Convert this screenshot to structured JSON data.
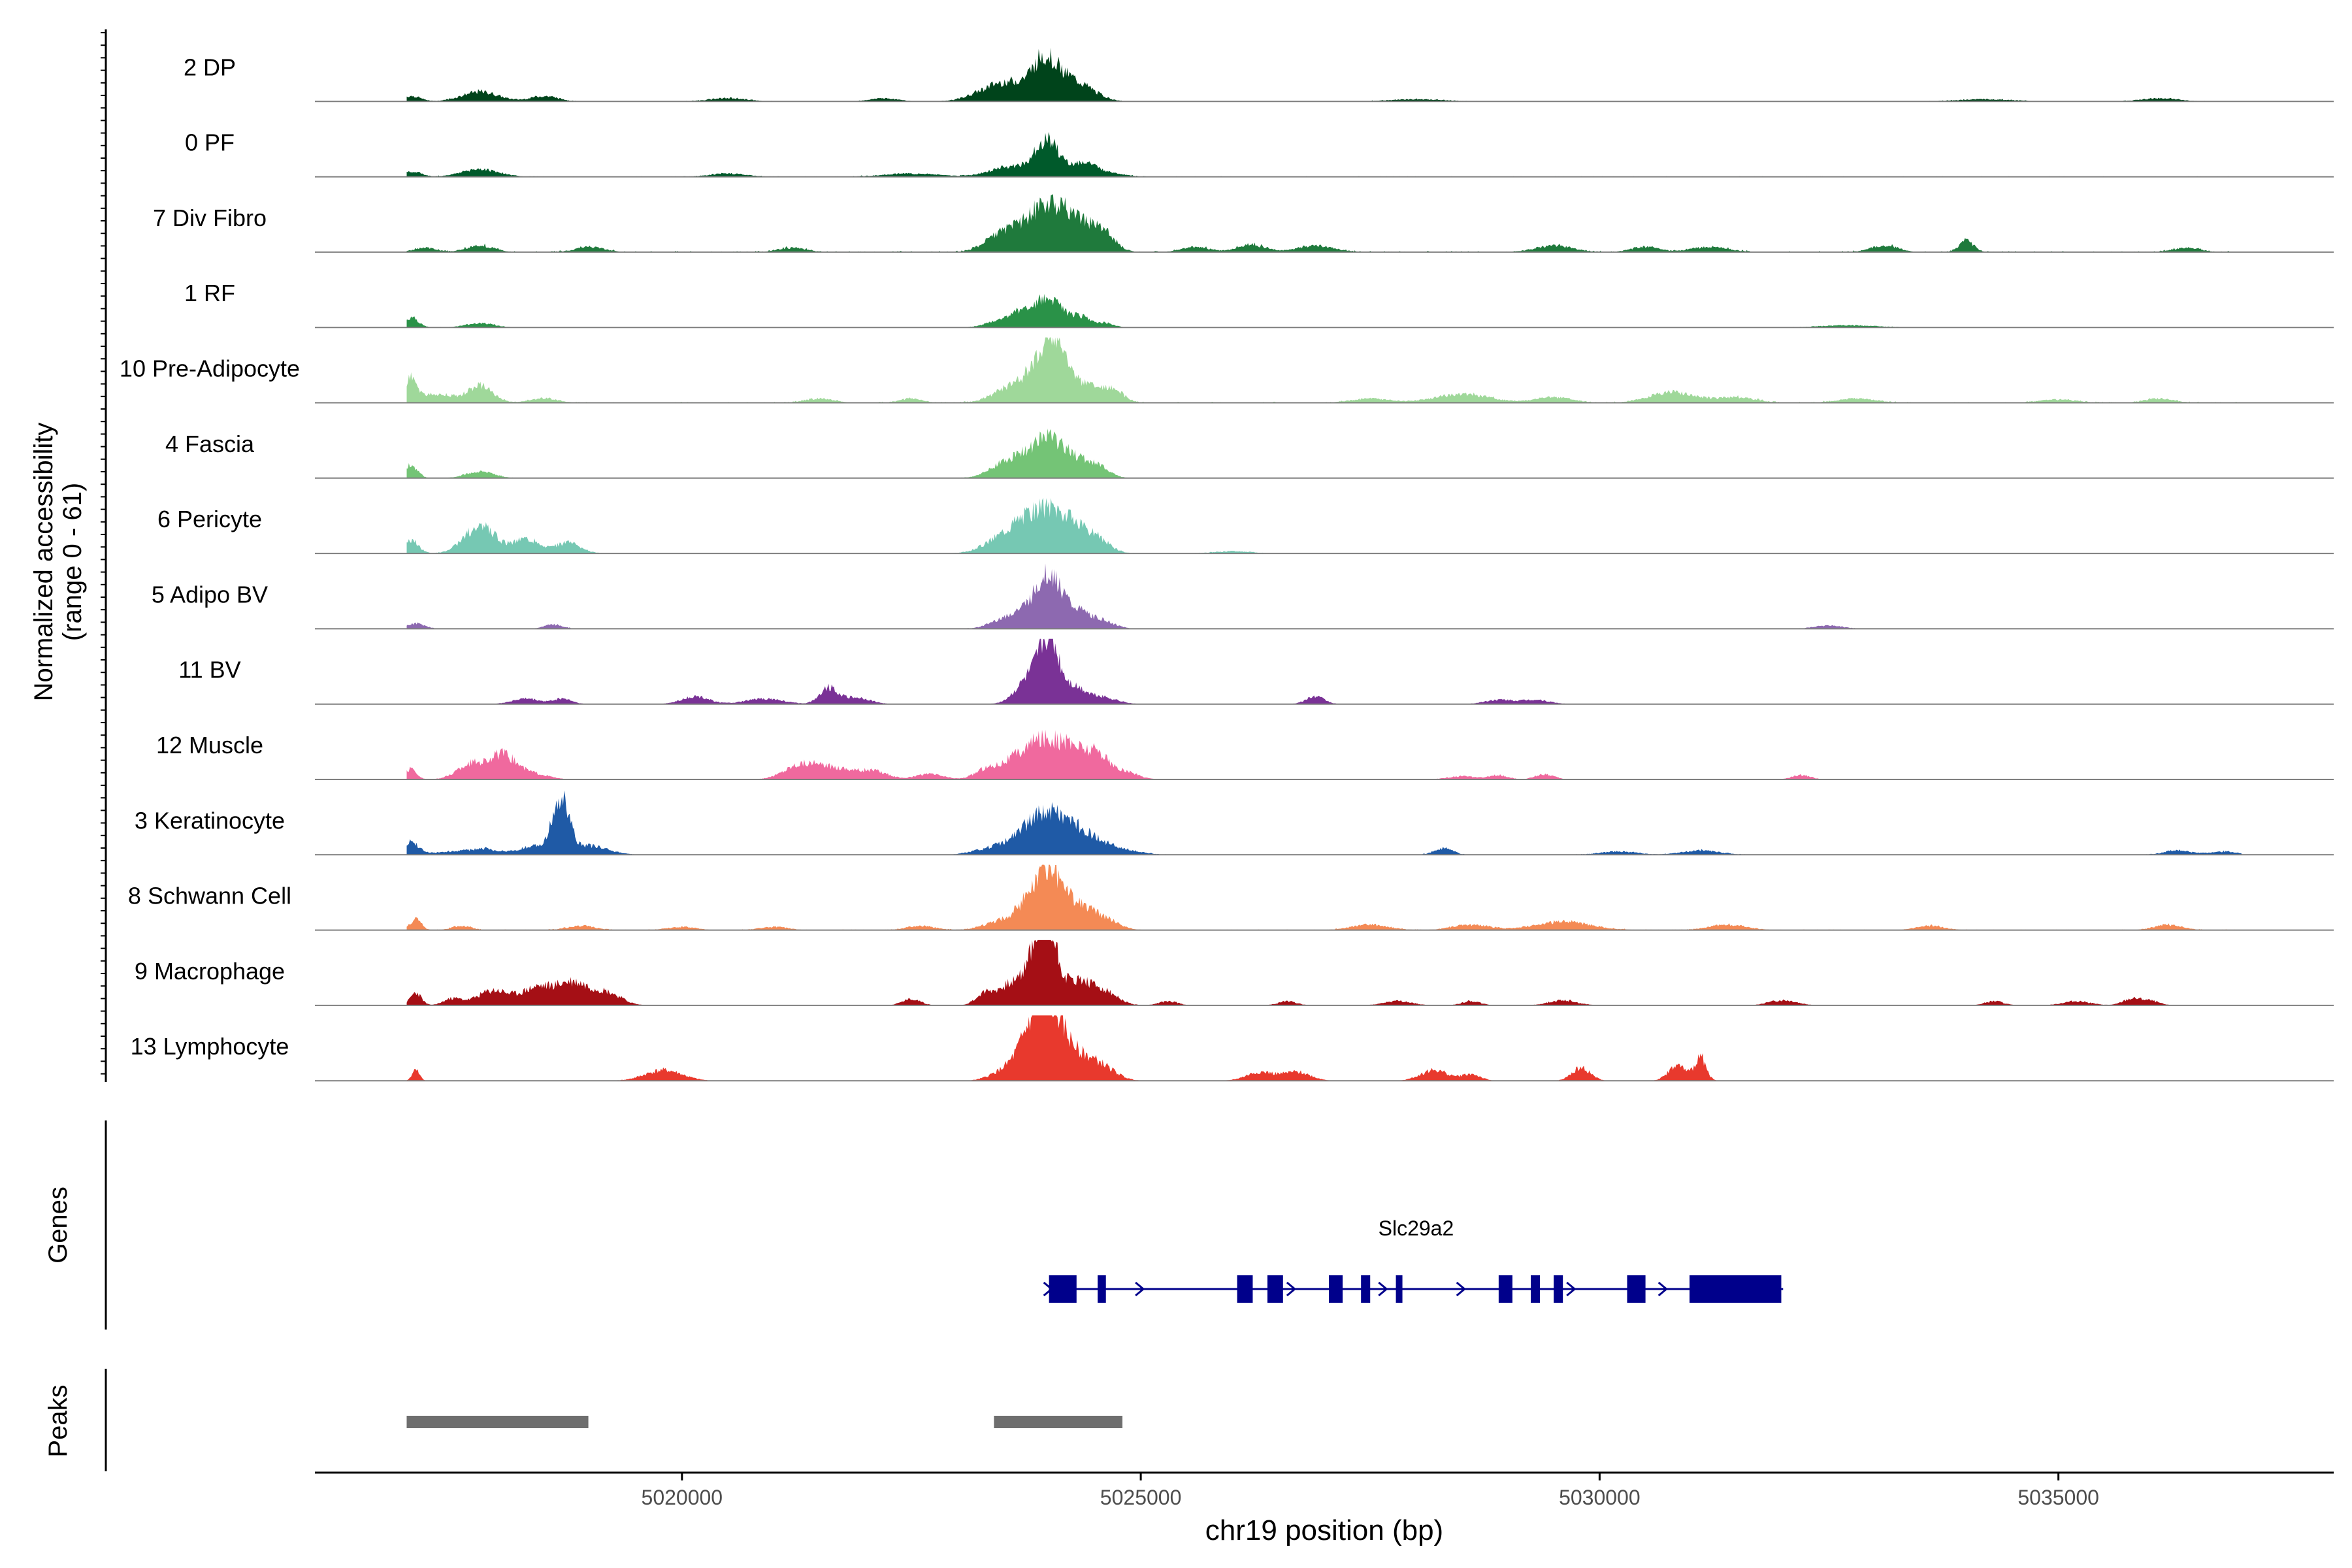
{
  "chart_data": {
    "type": "area",
    "title": "",
    "xlabel": "chr19 position (bp)",
    "ylabel_line1": "Normalized accessibility",
    "ylabel_line2": "(range 0 - 61)",
    "yrange": [
      0,
      61
    ],
    "xlim": [
      5016000,
      5038000
    ],
    "xticks": [
      5020000,
      5025000,
      5030000,
      5035000
    ],
    "xtick_labels": [
      "5020000",
      "5025000",
      "5030000",
      "5035000"
    ],
    "track_labels": {
      "genes": "Genes",
      "peaks": "Peaks"
    },
    "tracks": [
      {
        "name": "2 DP",
        "color": "#00441b",
        "peaks": [
          [
            5017050,
            5,
            100
          ],
          [
            5017800,
            9,
            200
          ],
          [
            5018500,
            5,
            150
          ],
          [
            5020500,
            3,
            200
          ],
          [
            5022200,
            3,
            150
          ],
          [
            5023300,
            6,
            200
          ],
          [
            5023600,
            16,
            220
          ],
          [
            5023950,
            34,
            130
          ],
          [
            5024200,
            18,
            160
          ],
          [
            5024450,
            7,
            150
          ],
          [
            5028000,
            2,
            300
          ],
          [
            5034200,
            2,
            300
          ],
          [
            5036100,
            3,
            200
          ]
        ],
        "noise": 0.06,
        "range": [
          5017000,
          5037000
        ]
      },
      {
        "name": "0 PF",
        "color": "#005a2b",
        "peaks": [
          [
            5017050,
            5,
            100
          ],
          [
            5017800,
            7,
            200
          ],
          [
            5020500,
            3,
            200
          ],
          [
            5022500,
            3,
            300
          ],
          [
            5023550,
            9,
            200
          ],
          [
            5023980,
            33,
            140
          ],
          [
            5024380,
            12,
            120
          ],
          [
            5024650,
            4,
            150
          ]
        ],
        "noise": 0.07,
        "range": [
          5017000,
          5037000
        ]
      },
      {
        "name": "7 Div Fibro",
        "color": "#1f7a3c",
        "peaks": [
          [
            5017200,
            4,
            120
          ],
          [
            5017800,
            6,
            150
          ],
          [
            5019000,
            5,
            150
          ],
          [
            5021200,
            4,
            150
          ],
          [
            5023400,
            8,
            150
          ],
          [
            5023650,
            16,
            200
          ],
          [
            5024000,
            38,
            200
          ],
          [
            5024350,
            22,
            200
          ],
          [
            5024600,
            12,
            120
          ],
          [
            5025600,
            5,
            150
          ],
          [
            5026200,
            7,
            150
          ],
          [
            5026900,
            6,
            200
          ],
          [
            5029500,
            6,
            200
          ],
          [
            5030500,
            5,
            150
          ],
          [
            5031200,
            5,
            200
          ],
          [
            5033100,
            6,
            150
          ],
          [
            5034000,
            10,
            80
          ],
          [
            5036400,
            4,
            150
          ]
        ],
        "noise": 0.15,
        "range": [
          5017000,
          5037000
        ]
      },
      {
        "name": "1 RF",
        "color": "#2a9248",
        "peaks": [
          [
            5017050,
            9,
            80
          ],
          [
            5017800,
            4,
            150
          ],
          [
            5023450,
            5,
            150
          ],
          [
            5023700,
            12,
            140
          ],
          [
            5024000,
            26,
            150
          ],
          [
            5024350,
            9,
            100
          ],
          [
            5024600,
            4,
            100
          ],
          [
            5032700,
            2,
            300
          ]
        ],
        "noise": 0.05,
        "range": [
          5017000,
          5037000
        ]
      },
      {
        "name": "10 Pre-Adipocyte",
        "color": "#9fd89a",
        "peaks": [
          [
            5017050,
            22,
            70
          ],
          [
            5017350,
            8,
            150
          ],
          [
            5017800,
            16,
            140
          ],
          [
            5018500,
            4,
            150
          ],
          [
            5021500,
            4,
            150
          ],
          [
            5022500,
            4,
            120
          ],
          [
            5023550,
            12,
            180
          ],
          [
            5023850,
            24,
            150
          ],
          [
            5024050,
            52,
            120
          ],
          [
            5024350,
            18,
            180
          ],
          [
            5024700,
            10,
            120
          ],
          [
            5027500,
            4,
            200
          ],
          [
            5028500,
            8,
            300
          ],
          [
            5029500,
            5,
            200
          ],
          [
            5030800,
            10,
            250
          ],
          [
            5031500,
            5,
            200
          ],
          [
            5032800,
            4,
            200
          ],
          [
            5035000,
            3,
            200
          ],
          [
            5036100,
            4,
            150
          ]
        ],
        "noise": 0.12,
        "range": [
          5017000,
          5037000
        ]
      },
      {
        "name": "4 Fascia",
        "color": "#74c476",
        "peaks": [
          [
            5017050,
            12,
            70
          ],
          [
            5017800,
            6,
            150
          ],
          [
            5023450,
            8,
            150
          ],
          [
            5023700,
            18,
            160
          ],
          [
            5024000,
            34,
            150
          ],
          [
            5024300,
            16,
            150
          ],
          [
            5024550,
            8,
            120
          ]
        ],
        "noise": 0.05,
        "range": [
          5017000,
          5037000
        ]
      },
      {
        "name": "6 Pericyte",
        "color": "#76c8b3",
        "peaks": [
          [
            5017050,
            12,
            80
          ],
          [
            5017800,
            26,
            170
          ],
          [
            5018300,
            14,
            130
          ],
          [
            5018750,
            10,
            140
          ],
          [
            5023450,
            12,
            180
          ],
          [
            5023700,
            20,
            150
          ],
          [
            5024000,
            38,
            180
          ],
          [
            5024300,
            18,
            160
          ],
          [
            5024550,
            10,
            130
          ],
          [
            5026000,
            2,
            200
          ]
        ],
        "noise": 0.05,
        "range": [
          5017000,
          5037000
        ]
      },
      {
        "name": "5 Adipo BV",
        "color": "#8d69b0",
        "peaks": [
          [
            5017100,
            5,
            100
          ],
          [
            5018600,
            4,
            100
          ],
          [
            5023500,
            8,
            150
          ],
          [
            5023750,
            14,
            140
          ],
          [
            5024000,
            48,
            130
          ],
          [
            5024300,
            16,
            150
          ],
          [
            5024600,
            6,
            130
          ],
          [
            5032500,
            3,
            150
          ]
        ],
        "noise": 0.04,
        "range": [
          5017000,
          5037000
        ]
      },
      {
        "name": "11 BV",
        "color": "#7a3296",
        "peaks": [
          [
            5018300,
            5,
            150
          ],
          [
            5018700,
            5,
            100
          ],
          [
            5020150,
            7,
            150
          ],
          [
            5020900,
            5,
            200
          ],
          [
            5021600,
            15,
            100
          ],
          [
            5021900,
            6,
            150
          ],
          [
            5023800,
            24,
            150
          ],
          [
            5024000,
            50,
            100
          ],
          [
            5024250,
            16,
            150
          ],
          [
            5024600,
            6,
            150
          ],
          [
            5026900,
            7,
            100
          ],
          [
            5028900,
            4,
            150
          ],
          [
            5029300,
            4,
            150
          ]
        ],
        "noise": 0.0,
        "range": [
          5017000,
          5037000
        ]
      },
      {
        "name": "12 Muscle",
        "color": "#f0699e",
        "peaks": [
          [
            5017050,
            10,
            60
          ],
          [
            5017700,
            14,
            150
          ],
          [
            5018050,
            22,
            150
          ],
          [
            5018400,
            5,
            150
          ],
          [
            5021300,
            14,
            180
          ],
          [
            5021700,
            10,
            200
          ],
          [
            5022100,
            7,
            150
          ],
          [
            5022700,
            5,
            150
          ],
          [
            5023300,
            8,
            120
          ],
          [
            5023600,
            16,
            160
          ],
          [
            5023950,
            36,
            180
          ],
          [
            5024300,
            26,
            150
          ],
          [
            5024550,
            18,
            100
          ],
          [
            5024800,
            8,
            150
          ],
          [
            5028500,
            3,
            150
          ],
          [
            5028900,
            4,
            100
          ],
          [
            5029400,
            5,
            100
          ],
          [
            5032200,
            4,
            100
          ]
        ],
        "noise": 0.0,
        "range": [
          5017000,
          5037000
        ]
      },
      {
        "name": "3 Keratinocyte",
        "color": "#1f5aa6",
        "peaks": [
          [
            5017050,
            12,
            80
          ],
          [
            5017500,
            3,
            200
          ],
          [
            5017850,
            5,
            150
          ],
          [
            5018400,
            8,
            180
          ],
          [
            5018680,
            50,
            90
          ],
          [
            5019000,
            8,
            200
          ],
          [
            5023400,
            6,
            200
          ],
          [
            5023800,
            18,
            200
          ],
          [
            5024050,
            28,
            200
          ],
          [
            5024400,
            16,
            200
          ],
          [
            5024800,
            4,
            200
          ],
          [
            5028300,
            6,
            100
          ],
          [
            5030200,
            3,
            200
          ],
          [
            5031100,
            4,
            200
          ],
          [
            5036300,
            4,
            150
          ],
          [
            5036800,
            3,
            150
          ]
        ],
        "noise": 0.06,
        "range": [
          5017000,
          5037000
        ]
      },
      {
        "name": "8 Schwann Cell",
        "color": "#f48a55",
        "peaks": [
          [
            5017100,
            10,
            60
          ],
          [
            5017600,
            4,
            100
          ],
          [
            5018900,
            4,
            150
          ],
          [
            5020000,
            3,
            150
          ],
          [
            5021000,
            3,
            150
          ],
          [
            5022600,
            4,
            150
          ],
          [
            5023500,
            8,
            200
          ],
          [
            5023800,
            22,
            150
          ],
          [
            5024000,
            48,
            130
          ],
          [
            5024300,
            24,
            150
          ],
          [
            5024600,
            10,
            150
          ],
          [
            5027500,
            5,
            200
          ],
          [
            5028600,
            5,
            200
          ],
          [
            5029600,
            8,
            300
          ],
          [
            5031400,
            5,
            200
          ],
          [
            5033600,
            4,
            150
          ],
          [
            5036200,
            5,
            150
          ]
        ],
        "noise": 0.08,
        "range": [
          5017000,
          5037000
        ]
      },
      {
        "name": "9 Macrophage",
        "color": "#a50f15",
        "peaks": [
          [
            5017100,
            12,
            60
          ],
          [
            5017500,
            6,
            100
          ],
          [
            5017950,
            14,
            180
          ],
          [
            5018400,
            14,
            150
          ],
          [
            5018800,
            22,
            200
          ],
          [
            5019200,
            10,
            150
          ],
          [
            5022500,
            6,
            100
          ],
          [
            5023300,
            10,
            100
          ],
          [
            5023600,
            20,
            150
          ],
          [
            5023850,
            40,
            100
          ],
          [
            5024000,
            60,
            100
          ],
          [
            5024300,
            22,
            150
          ],
          [
            5024600,
            12,
            150
          ],
          [
            5025300,
            4,
            100
          ],
          [
            5026600,
            4,
            100
          ],
          [
            5027800,
            4,
            150
          ],
          [
            5028600,
            4,
            100
          ],
          [
            5029600,
            5,
            150
          ],
          [
            5032000,
            5,
            150
          ],
          [
            5034300,
            4,
            100
          ],
          [
            5035200,
            4,
            150
          ],
          [
            5035800,
            6,
            100
          ],
          [
            5036000,
            4,
            100
          ]
        ],
        "noise": 0.0,
        "range": [
          5017000,
          5037000
        ]
      },
      {
        "name": "13 Lymphocyte",
        "color": "#e8392d",
        "peaks": [
          [
            5017100,
            10,
            40
          ],
          [
            5019800,
            10,
            200
          ],
          [
            5023500,
            8,
            150
          ],
          [
            5023800,
            34,
            150
          ],
          [
            5024000,
            58,
            150
          ],
          [
            5024300,
            22,
            180
          ],
          [
            5024600,
            10,
            150
          ],
          [
            5026300,
            8,
            150
          ],
          [
            5026700,
            8,
            150
          ],
          [
            5028200,
            10,
            150
          ],
          [
            5028600,
            6,
            100
          ],
          [
            5029800,
            12,
            100
          ],
          [
            5030850,
            14,
            100
          ],
          [
            5031100,
            22,
            60
          ]
        ],
        "noise": 0.0,
        "range": [
          5017000,
          5037000
        ]
      }
    ],
    "gene": {
      "name": "Slc29a2",
      "strand": "+",
      "start": 5024000,
      "end": 5032000,
      "exons": [
        [
          5024000,
          5024300
        ],
        [
          5024530,
          5024620
        ],
        [
          5026050,
          5026220
        ],
        [
          5026380,
          5026550
        ],
        [
          5027050,
          5027200
        ],
        [
          5027400,
          5027500
        ],
        [
          5027780,
          5027850
        ],
        [
          5028900,
          5029050
        ],
        [
          5029250,
          5029350
        ],
        [
          5029500,
          5029600
        ],
        [
          5030300,
          5030500
        ],
        [
          5030980,
          5031980
        ]
      ],
      "color": "#00008b"
    },
    "peaks_track": [
      [
        5017000,
        5018980
      ],
      [
        5023400,
        5024800
      ]
    ]
  }
}
